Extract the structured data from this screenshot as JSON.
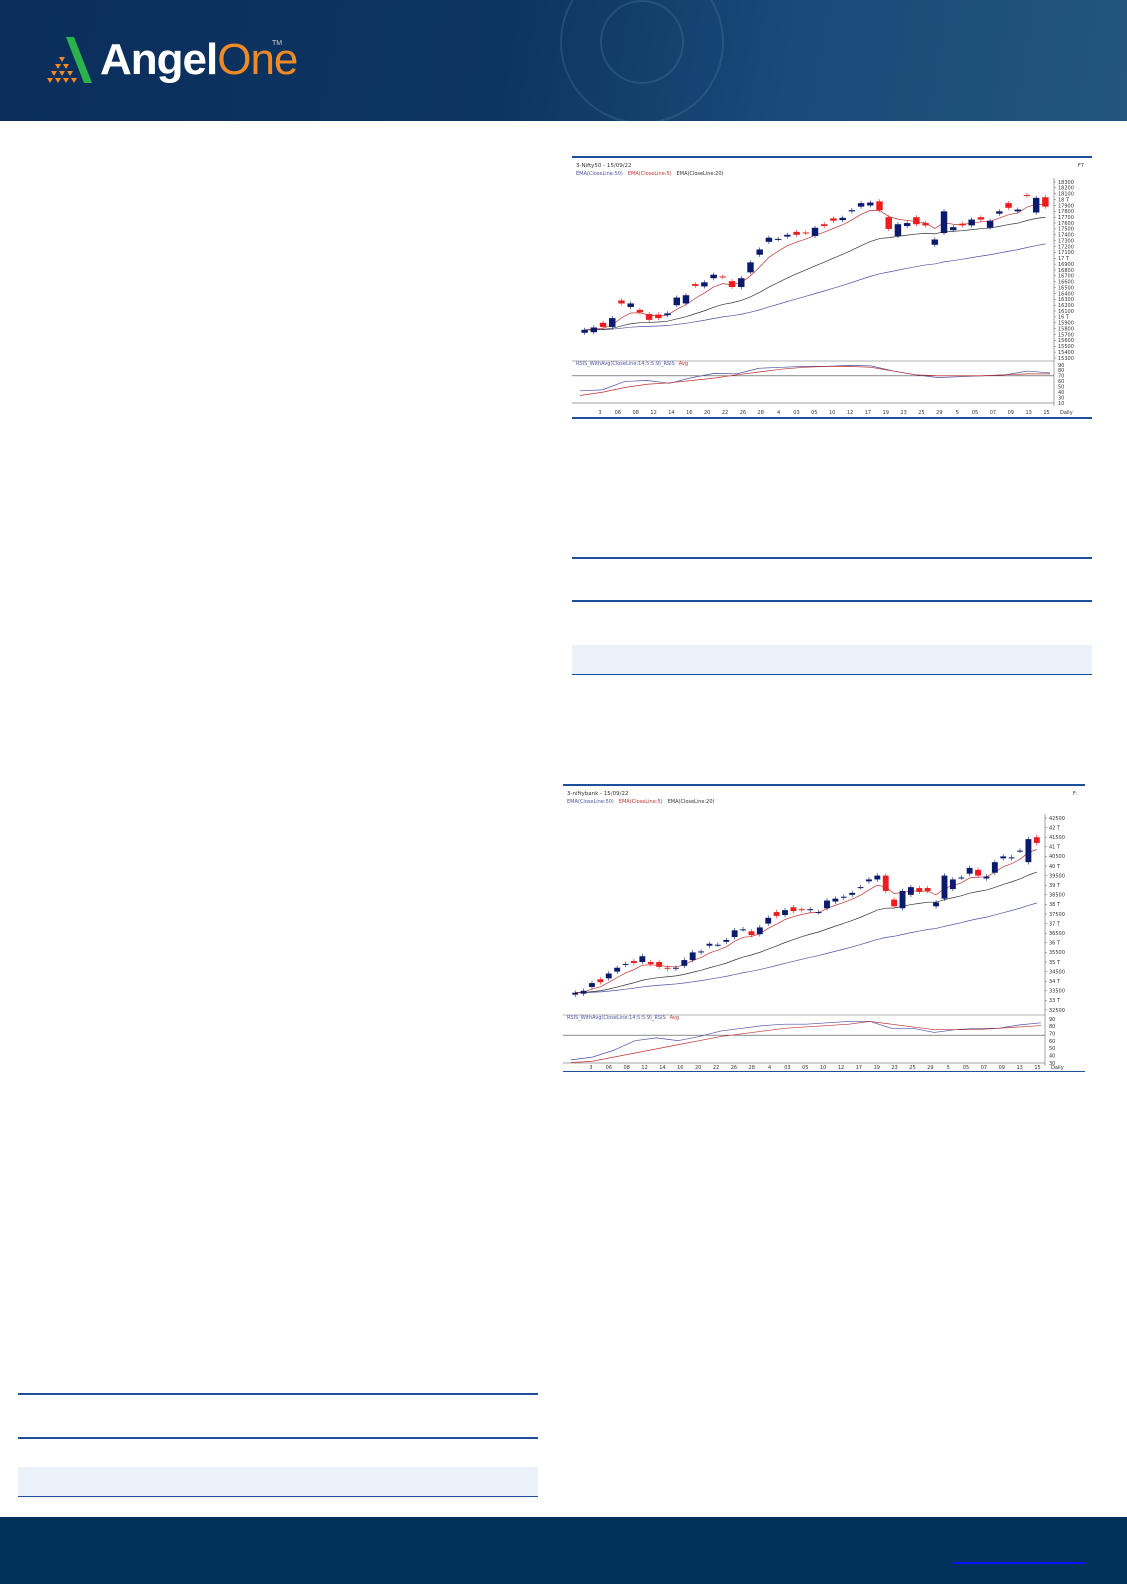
{
  "header": {
    "brand_primary": "Angel",
    "brand_secondary": "One",
    "trademark": "TM",
    "bg_color": "#0d3563",
    "accent": "#f08a24"
  },
  "footer": {
    "bg_color": "#003159"
  },
  "chart_data": [
    {
      "type": "candlestick",
      "title": "3-Nifty50 - 15/09/22",
      "legend": [
        "EMA(CloseLine:50)",
        "EMA(CloseLine:5)",
        "EMA(CloseLine:20)"
      ],
      "legend_colors": [
        "#5050a8",
        "#c03030",
        "#333333"
      ],
      "corner_label": "F7",
      "period_label": "Daily",
      "ylim": [
        15300,
        18300
      ],
      "y_ticks": [
        "18300",
        "18200",
        "18100",
        "18 T",
        "17900",
        "17800",
        "17700",
        "17600",
        "17500",
        "17400",
        "17300",
        "17200",
        "17100",
        "17 T",
        "16900",
        "16800",
        "16700",
        "16600",
        "16500",
        "16400",
        "16300",
        "16200",
        "16100",
        "16 T",
        "15900",
        "15800",
        "15700",
        "15600",
        "15500",
        "15400",
        "15300"
      ],
      "x_ticks": [
        "3",
        "06",
        "08",
        "12",
        "14",
        "16",
        "20",
        "22",
        "26",
        "28",
        "4",
        "03",
        "05",
        "10",
        "12",
        "17",
        "19",
        "23",
        "25",
        "29",
        "5",
        "05",
        "07",
        "09",
        "13",
        "15"
      ],
      "ohlc_open_close": [
        [
          15730,
          15780
        ],
        [
          15740,
          15820
        ],
        [
          15900,
          15830
        ],
        [
          15830,
          15980
        ],
        [
          16280,
          16230
        ],
        [
          16170,
          16230
        ],
        [
          16120,
          16080
        ],
        [
          16050,
          15950
        ],
        [
          16040,
          15980
        ],
        [
          16030,
          16060
        ],
        [
          16200,
          16330
        ],
        [
          16230,
          16370
        ],
        [
          16560,
          16530
        ],
        [
          16520,
          16590
        ],
        [
          16660,
          16720
        ],
        [
          16690,
          16680
        ],
        [
          16610,
          16510
        ],
        [
          16510,
          16660
        ],
        [
          16760,
          16930
        ],
        [
          17060,
          17150
        ],
        [
          17280,
          17350
        ],
        [
          17320,
          17330
        ],
        [
          17370,
          17400
        ],
        [
          17450,
          17400
        ],
        [
          17440,
          17430
        ],
        [
          17380,
          17520
        ],
        [
          17580,
          17550
        ],
        [
          17680,
          17640
        ],
        [
          17650,
          17690
        ],
        [
          17800,
          17820
        ],
        [
          17880,
          17940
        ],
        [
          17900,
          17950
        ],
        [
          17970,
          17820
        ],
        [
          17700,
          17500
        ],
        [
          17380,
          17580
        ],
        [
          17550,
          17600
        ],
        [
          17700,
          17580
        ],
        [
          17600,
          17560
        ],
        [
          17230,
          17320
        ],
        [
          17430,
          17800
        ],
        [
          17480,
          17530
        ],
        [
          17590,
          17560
        ],
        [
          17560,
          17660
        ],
        [
          17700,
          17660
        ],
        [
          17520,
          17640
        ],
        [
          17760,
          17800
        ],
        [
          17940,
          17860
        ],
        [
          17800,
          17830
        ],
        [
          18080,
          18070
        ],
        [
          17780,
          18030
        ],
        [
          18040,
          17880
        ]
      ],
      "indicator": {
        "label": "RSIS_WithAvg(CloseLine:14:5:5:9)_RSIS",
        "label_avg": "Avg",
        "y_ticks": [
          "90",
          "80",
          "70",
          "60",
          "50",
          "40",
          "30",
          "10"
        ],
        "ylim": [
          10,
          95
        ],
        "reference_line": 70,
        "rsi": [
          38,
          40,
          58,
          60,
          54,
          66,
          75,
          74,
          86,
          88,
          90,
          90,
          92,
          91,
          80,
          72,
          66,
          68,
          70,
          72,
          80,
          76
        ],
        "avg": [
          28,
          35,
          45,
          52,
          55,
          60,
          65,
          72,
          78,
          84,
          88,
          90,
          90,
          88,
          80,
          72,
          70,
          70,
          70,
          72,
          74,
          74
        ]
      },
      "up_color": "#0a1a6e",
      "down_color": "#ee1c1c"
    },
    {
      "type": "candlestick",
      "title": "3-niftybank - 15/09/22",
      "legend": [
        "EMA(CloseLine:50)",
        "EMA(CloseLine:5)",
        "EMA(CloseLine:20)"
      ],
      "legend_colors": [
        "#5050a8",
        "#c03030",
        "#333333"
      ],
      "corner_label": "F:",
      "period_label": "Daily",
      "ylim": [
        32500,
        42500
      ],
      "y_ticks": [
        "42500",
        "42 T",
        "41500",
        "41 T",
        "40500",
        "40 T",
        "39500",
        "39 T",
        "38500",
        "38 T",
        "37500",
        "37 T",
        "36500",
        "36 T",
        "35500",
        "35 T",
        "34500",
        "34 T",
        "33500",
        "33 T",
        "32500"
      ],
      "x_ticks": [
        "3",
        "06",
        "08",
        "12",
        "14",
        "16",
        "20",
        "22",
        "26",
        "28",
        "4",
        "03",
        "05",
        "10",
        "12",
        "17",
        "19",
        "23",
        "25",
        "29",
        "5",
        "05",
        "07",
        "09",
        "13",
        "15"
      ],
      "ohlc_open_close": [
        [
          33300,
          33400
        ],
        [
          33350,
          33500
        ],
        [
          33700,
          33900
        ],
        [
          34100,
          33950
        ],
        [
          34150,
          34400
        ],
        [
          34500,
          34700
        ],
        [
          34850,
          34900
        ],
        [
          35050,
          34950
        ],
        [
          35000,
          35300
        ],
        [
          35000,
          34900
        ],
        [
          35000,
          34750
        ],
        [
          34700,
          34650
        ],
        [
          34650,
          34700
        ],
        [
          34800,
          35100
        ],
        [
          35100,
          35500
        ],
        [
          35500,
          35550
        ],
        [
          35850,
          35950
        ],
        [
          35900,
          35900
        ],
        [
          36050,
          36150
        ],
        [
          36300,
          36650
        ],
        [
          36700,
          36700
        ],
        [
          36600,
          36400
        ],
        [
          36450,
          36800
        ],
        [
          37000,
          37300
        ],
        [
          37600,
          37400
        ],
        [
          37450,
          37700
        ],
        [
          37850,
          37650
        ],
        [
          37750,
          37700
        ],
        [
          37700,
          37750
        ],
        [
          37600,
          37600
        ],
        [
          37800,
          38200
        ],
        [
          38150,
          38300
        ],
        [
          38350,
          38400
        ],
        [
          38500,
          38600
        ],
        [
          38900,
          38900
        ],
        [
          39200,
          39300
        ],
        [
          39300,
          39500
        ],
        [
          39500,
          38700
        ],
        [
          38250,
          37900
        ],
        [
          37800,
          38700
        ],
        [
          38500,
          38900
        ],
        [
          38850,
          38650
        ],
        [
          38850,
          38700
        ],
        [
          37900,
          38100
        ],
        [
          38300,
          39500
        ],
        [
          38800,
          39300
        ],
        [
          39400,
          39400
        ],
        [
          39600,
          39900
        ],
        [
          39800,
          39500
        ],
        [
          39350,
          39450
        ],
        [
          39650,
          40200
        ],
        [
          40400,
          40500
        ],
        [
          40400,
          40450
        ],
        [
          40800,
          40800
        ],
        [
          40200,
          41400
        ],
        [
          41500,
          41200
        ]
      ],
      "indicator": {
        "label": "RSIS_WithAvg(CloseLine:14:5:5:9)_RSIS",
        "label_avg": "Avg",
        "y_ticks": [
          "90",
          "80",
          "70",
          "60",
          "50",
          "40",
          "30"
        ],
        "ylim": [
          28,
          95
        ],
        "reference_line": 70,
        "rsi": [
          34,
          38,
          48,
          62,
          66,
          62,
          68,
          76,
          80,
          84,
          86,
          86,
          88,
          90,
          90,
          80,
          80,
          74,
          78,
          80,
          80,
          85,
          88
        ],
        "avg": [
          30,
          32,
          38,
          44,
          50,
          56,
          62,
          68,
          72,
          76,
          80,
          82,
          84,
          86,
          90,
          86,
          82,
          78,
          78,
          78,
          80,
          82,
          84
        ]
      },
      "up_color": "#0a1a6e",
      "down_color": "#ee1c1c"
    }
  ]
}
